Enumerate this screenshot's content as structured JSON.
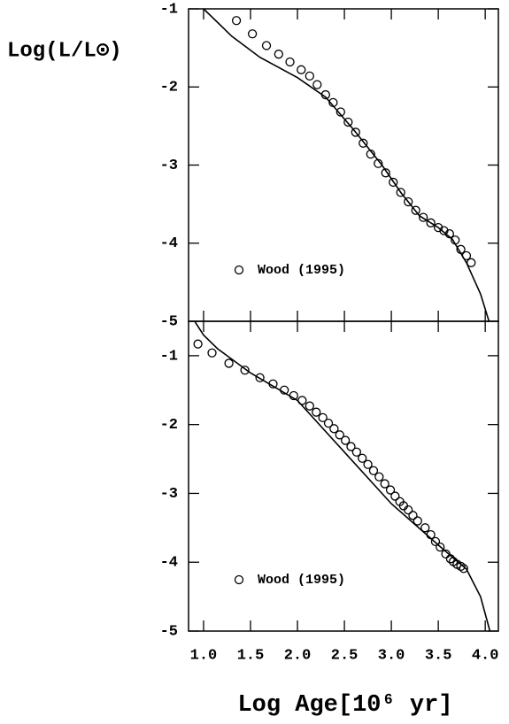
{
  "chart_data": [
    {
      "type": "scatter",
      "y_label": "Log(L/L⊙)",
      "xlim": [
        0.84,
        4.14
      ],
      "ylim": [
        -5,
        -1
      ],
      "yticks": [
        -1,
        -2,
        -3,
        -4,
        -5
      ],
      "xticks": [
        {
          "value": 1.0,
          "label": "1.0"
        },
        {
          "value": 1.5,
          "label": "1.5"
        },
        {
          "value": 2.0,
          "label": "2.0"
        },
        {
          "value": 2.5,
          "label": "2.5"
        },
        {
          "value": 3.0,
          "label": "3.0"
        },
        {
          "value": 3.5,
          "label": "3.5"
        },
        {
          "value": 4.0,
          "label": "4.0"
        }
      ],
      "series": [
        {
          "name": "Wood (1995)",
          "color": "#000000",
          "x": [
            1.35,
            1.52,
            1.67,
            1.8,
            1.92,
            2.04,
            2.13,
            2.21,
            2.3,
            2.38,
            2.46,
            2.54,
            2.62,
            2.7,
            2.78,
            2.86,
            2.94,
            3.02,
            3.1,
            3.18,
            3.26,
            3.34,
            3.42,
            3.5,
            3.56,
            3.62,
            3.68,
            3.74,
            3.8,
            3.85
          ],
          "y": [
            -1.15,
            -1.32,
            -1.47,
            -1.58,
            -1.68,
            -1.78,
            -1.86,
            -1.97,
            -2.1,
            -2.2,
            -2.32,
            -2.45,
            -2.58,
            -2.72,
            -2.86,
            -2.98,
            -3.1,
            -3.22,
            -3.35,
            -3.47,
            -3.58,
            -3.67,
            -3.74,
            -3.8,
            -3.84,
            -3.88,
            -3.96,
            -4.08,
            -4.16,
            -4.25
          ]
        }
      ],
      "curve": {
        "color": "#000000",
        "x": [
          1.0,
          1.3,
          1.6,
          2.0,
          2.3,
          2.6,
          2.9,
          3.1,
          3.3,
          3.5,
          3.65,
          3.8,
          3.95,
          4.04
        ],
        "y": [
          -1.0,
          -1.35,
          -1.62,
          -1.88,
          -2.13,
          -2.55,
          -3.0,
          -3.35,
          -3.65,
          -3.8,
          -3.95,
          -4.25,
          -4.65,
          -5.0
        ]
      }
    },
    {
      "type": "scatter",
      "x_label": "Log Age[10⁶ yr]",
      "xlim": [
        0.84,
        4.14
      ],
      "ylim": [
        -5,
        -0.5
      ],
      "yticks": [
        -1,
        -2,
        -3,
        -4,
        -5
      ],
      "xticks": [
        {
          "value": 1.0,
          "label": "1.0"
        },
        {
          "value": 1.5,
          "label": "1.5"
        },
        {
          "value": 2.0,
          "label": "2.0"
        },
        {
          "value": 2.5,
          "label": "2.5"
        },
        {
          "value": 3.0,
          "label": "3.0"
        },
        {
          "value": 3.5,
          "label": "3.5"
        },
        {
          "value": 4.0,
          "label": "4.0"
        }
      ],
      "series": [
        {
          "name": "Wood (1995)",
          "color": "#000000",
          "x": [
            0.94,
            1.09,
            1.27,
            1.44,
            1.6,
            1.74,
            1.86,
            1.96,
            2.05,
            2.13,
            2.2,
            2.27,
            2.33,
            2.39,
            2.45,
            2.51,
            2.57,
            2.63,
            2.69,
            2.75,
            2.81,
            2.87,
            2.93,
            2.99,
            3.04,
            3.09,
            3.13,
            3.18,
            3.23,
            3.28,
            3.36,
            3.42,
            3.47,
            3.52,
            3.58,
            3.63,
            3.66,
            3.7,
            3.74,
            3.77
          ],
          "y": [
            -0.83,
            -0.96,
            -1.11,
            -1.21,
            -1.32,
            -1.41,
            -1.5,
            -1.58,
            -1.65,
            -1.73,
            -1.82,
            -1.9,
            -1.98,
            -2.06,
            -2.15,
            -2.23,
            -2.32,
            -2.4,
            -2.49,
            -2.58,
            -2.67,
            -2.76,
            -2.86,
            -2.95,
            -3.04,
            -3.12,
            -3.18,
            -3.24,
            -3.32,
            -3.4,
            -3.5,
            -3.6,
            -3.7,
            -3.78,
            -3.88,
            -3.95,
            -3.99,
            -4.03,
            -4.06,
            -4.09
          ]
        }
      ],
      "curve": {
        "color": "#000000",
        "x": [
          0.91,
          1.0,
          1.15,
          1.3,
          1.5,
          2.0,
          2.5,
          3.0,
          3.5,
          3.8,
          3.95,
          4.05
        ],
        "y": [
          -0.51,
          -0.7,
          -0.9,
          -1.05,
          -1.25,
          -1.65,
          -2.4,
          -3.15,
          -3.75,
          -4.1,
          -4.5,
          -5.0
        ]
      }
    }
  ]
}
